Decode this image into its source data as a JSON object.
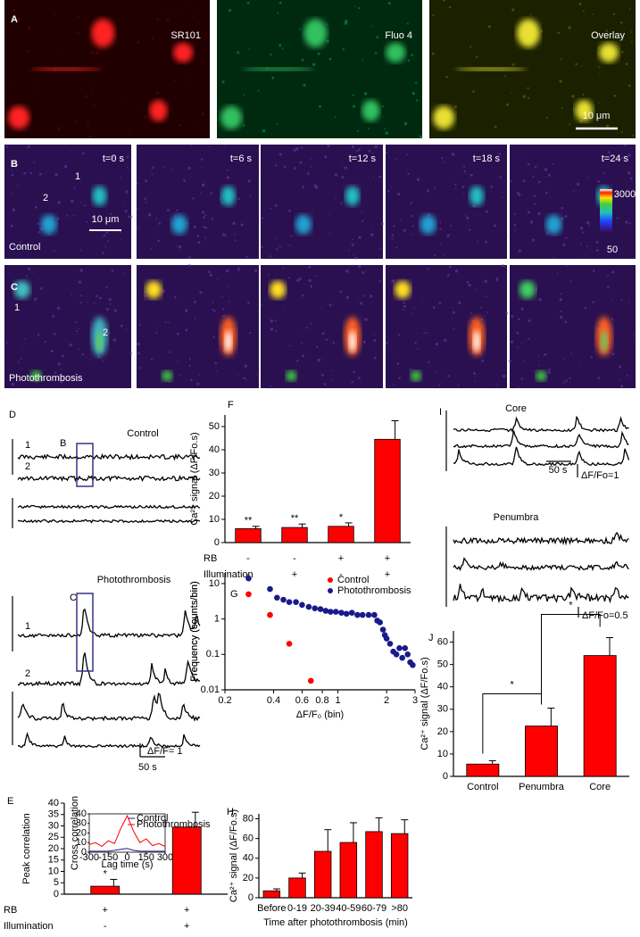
{
  "panels": {
    "A": {
      "label": "A",
      "images": [
        "SR101",
        "Fluo 4",
        "Overlay"
      ],
      "scale": "10 μm"
    },
    "B": {
      "label": "B",
      "times": [
        "t=0 s",
        "t=6 s",
        "t=12 s",
        "t=18 s",
        "t=24 s"
      ],
      "cells": [
        "1",
        "2"
      ],
      "condition": "Control",
      "scale": "10 μm",
      "colorbar": [
        3000,
        50
      ]
    },
    "C": {
      "label": "C",
      "cells": [
        "1",
        "2"
      ],
      "condition": "Photothrombosis"
    },
    "D": {
      "label": "D",
      "control": "Control",
      "traces_control": [
        "1",
        "2"
      ],
      "box_control": "B",
      "photo": "Photothrombosis",
      "traces_photo": [
        "1",
        "2"
      ],
      "box_photo": "C",
      "time_scale": "50 s",
      "amp_scale": "ΔF/F= 1"
    },
    "I": {
      "label": "I",
      "core": "Core",
      "penumbra": "Penumbra",
      "time_scale": "50 s",
      "amp_core": "ΔF/Fo=1",
      "amp_penumbra": "ΔF/Fo=0.5"
    }
  },
  "chart_data": [
    {
      "type": "bar",
      "panel": "F",
      "ylabel": "Ca²⁺ signal (ΔF/Fo.s)",
      "color": "#ff0000",
      "values": [
        6,
        6.5,
        7,
        44.5
      ],
      "errors": [
        1,
        1.5,
        1.5,
        8
      ],
      "annotations": [
        "**",
        "**",
        "*",
        null
      ],
      "rows": [
        {
          "name": "RB",
          "marks": [
            "-",
            "-",
            "+",
            "+"
          ]
        },
        {
          "name": "Illumination",
          "marks": [
            "-",
            "+",
            "-",
            "+"
          ]
        }
      ],
      "ylim": [
        0,
        55
      ],
      "yticks": [
        0,
        10,
        20,
        30,
        40,
        50
      ]
    },
    {
      "type": "scatter",
      "panel": "G",
      "xlabel": "ΔF/F₀ (bin)",
      "ylabel": "Frequency (counts/bin)",
      "log_x": true,
      "log_y": true,
      "legend": "upper-right",
      "xlim": [
        0.2,
        3
      ],
      "xticks": [
        0.2,
        0.4,
        0.6,
        0.8,
        1,
        2,
        3
      ],
      "ylim": [
        0.01,
        20
      ],
      "yticks": [
        0.01,
        0.1,
        1,
        10
      ],
      "series": [
        {
          "name": "Control",
          "color": "#ff0000",
          "x": [
            0.28,
            0.38,
            0.5,
            0.68
          ],
          "values": [
            5,
            1.3,
            0.2,
            0.018
          ]
        },
        {
          "name": "Photothrombosis",
          "color": "#1a1a8c",
          "x": [
            0.28,
            0.38,
            0.42,
            0.46,
            0.5,
            0.55,
            0.6,
            0.66,
            0.72,
            0.78,
            0.84,
            0.9,
            0.97,
            1.05,
            1.13,
            1.22,
            1.32,
            1.42,
            1.55,
            1.68,
            1.75,
            1.82,
            1.9,
            1.95,
            2.0,
            2.1,
            2.2,
            2.3,
            2.4,
            2.5,
            2.6,
            2.7,
            2.8,
            2.9
          ],
          "values": [
            14,
            7,
            4,
            3.5,
            3,
            3,
            2.5,
            2.2,
            2,
            1.9,
            1.7,
            1.6,
            1.6,
            1.5,
            1.4,
            1.5,
            1.3,
            1.3,
            1.3,
            1.3,
            0.9,
            0.8,
            0.5,
            0.35,
            0.28,
            0.2,
            0.12,
            0.1,
            0.15,
            0.08,
            0.15,
            0.1,
            0.06,
            0.05
          ]
        }
      ]
    },
    {
      "type": "bar",
      "panel": "J",
      "ylabel": "Ca²⁺ signal (ΔF/Fo.s)",
      "color": "#ff0000",
      "categories": [
        "Control",
        "Penumbra",
        "Core"
      ],
      "values": [
        5.5,
        22.5,
        54
      ],
      "errors": [
        1.5,
        8,
        8
      ],
      "significance": [
        "*",
        "*"
      ],
      "ylim": [
        0,
        65
      ],
      "yticks": [
        0,
        10,
        20,
        30,
        40,
        50,
        60
      ]
    },
    {
      "type": "bar",
      "panel": "E",
      "ylabel": "Peak correlation",
      "color": "#ff0000",
      "values": [
        3.5,
        29.5
      ],
      "errors": [
        3,
        6.5
      ],
      "annotations": [
        "*",
        null
      ],
      "rows": [
        {
          "name": "RB",
          "marks": [
            "+",
            "+"
          ]
        },
        {
          "name": "Illumination",
          "marks": [
            "-",
            "+"
          ]
        }
      ],
      "ylim": [
        0,
        40
      ],
      "yticks": [
        0,
        5,
        10,
        15,
        20,
        25,
        30,
        35,
        40
      ]
    },
    {
      "type": "bar",
      "panel": "H",
      "ylabel": "Ca²⁺ signal (ΔF/Fo.s)",
      "xlabel": "Time after photothrombosis (min)",
      "color": "#ff0000",
      "categories": [
        "Before",
        "0-19",
        "20-39",
        "40-59",
        "60-79",
        ">80"
      ],
      "values": [
        7,
        20,
        47,
        56,
        67,
        65
      ],
      "errors": [
        2,
        5,
        22,
        20,
        14,
        14
      ],
      "ylim": [
        0,
        85
      ],
      "yticks": [
        0,
        20,
        40,
        60,
        80
      ]
    },
    {
      "type": "line",
      "xlabel": "Lag time (s)",
      "ylabel": "Cross correlation",
      "legend": "upper-right",
      "x": [
        -300,
        -250,
        -200,
        -150,
        -100,
        -50,
        0,
        50,
        100,
        150,
        200,
        250,
        300
      ],
      "xlim": [
        -300,
        300
      ],
      "xticks": [
        -300,
        -150,
        0,
        150,
        300
      ],
      "ylim": [
        0,
        40
      ],
      "yticks": [
        0,
        10,
        20,
        30,
        40
      ],
      "series": [
        {
          "name": "Control",
          "color": "#1a1a8c",
          "values": [
            1,
            1,
            1,
            1,
            2,
            3,
            4,
            2,
            1,
            1,
            1,
            1,
            1
          ]
        },
        {
          "name": "Photothrombosis",
          "color": "#ff0000",
          "values": [
            8,
            10,
            6,
            12,
            9,
            25,
            38,
            22,
            10,
            14,
            7,
            9,
            6
          ]
        }
      ]
    }
  ]
}
